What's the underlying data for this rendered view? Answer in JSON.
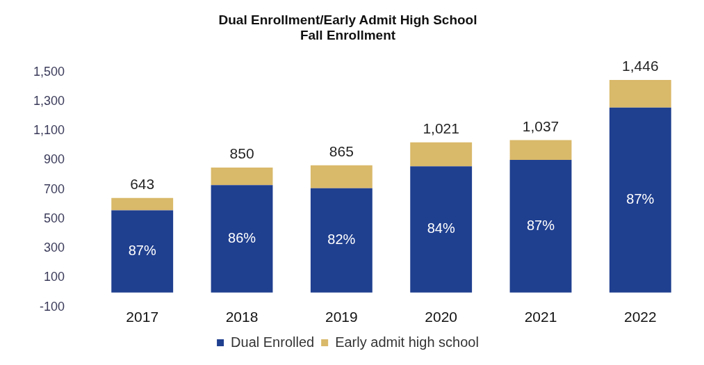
{
  "chart_data": {
    "type": "bar",
    "title": "Dual Enrollment/Early Admit High School\nFall Enrollment",
    "categories": [
      "2017",
      "2018",
      "2019",
      "2020",
      "2021",
      "2022"
    ],
    "stacked": true,
    "series": [
      {
        "name": "Dual Enrolled",
        "color": "#1f3f8f",
        "values": [
          559,
          731,
          709,
          858,
          902,
          1258
        ]
      },
      {
        "name": "Early admit high school",
        "color": "#d9b96a",
        "values": [
          84,
          119,
          156,
          163,
          135,
          188
        ]
      }
    ],
    "annotations": [
      "87%",
      "86%",
      "82%",
      "84%",
      "87%",
      "87%"
    ],
    "totals": [
      "643",
      "850",
      "865",
      "1,021",
      "1,037",
      "1,446"
    ],
    "ylim": [
      -100,
      1500
    ],
    "yticks": [
      {
        "value": -100,
        "label": "-100"
      },
      100,
      300,
      500,
      700,
      900,
      {
        "value": 1100,
        "label": "1,100"
      },
      {
        "value": 1300,
        "label": "1,300"
      },
      {
        "value": 1500,
        "label": "1,500"
      }
    ],
    "grid": false,
    "legend": "bottom"
  }
}
